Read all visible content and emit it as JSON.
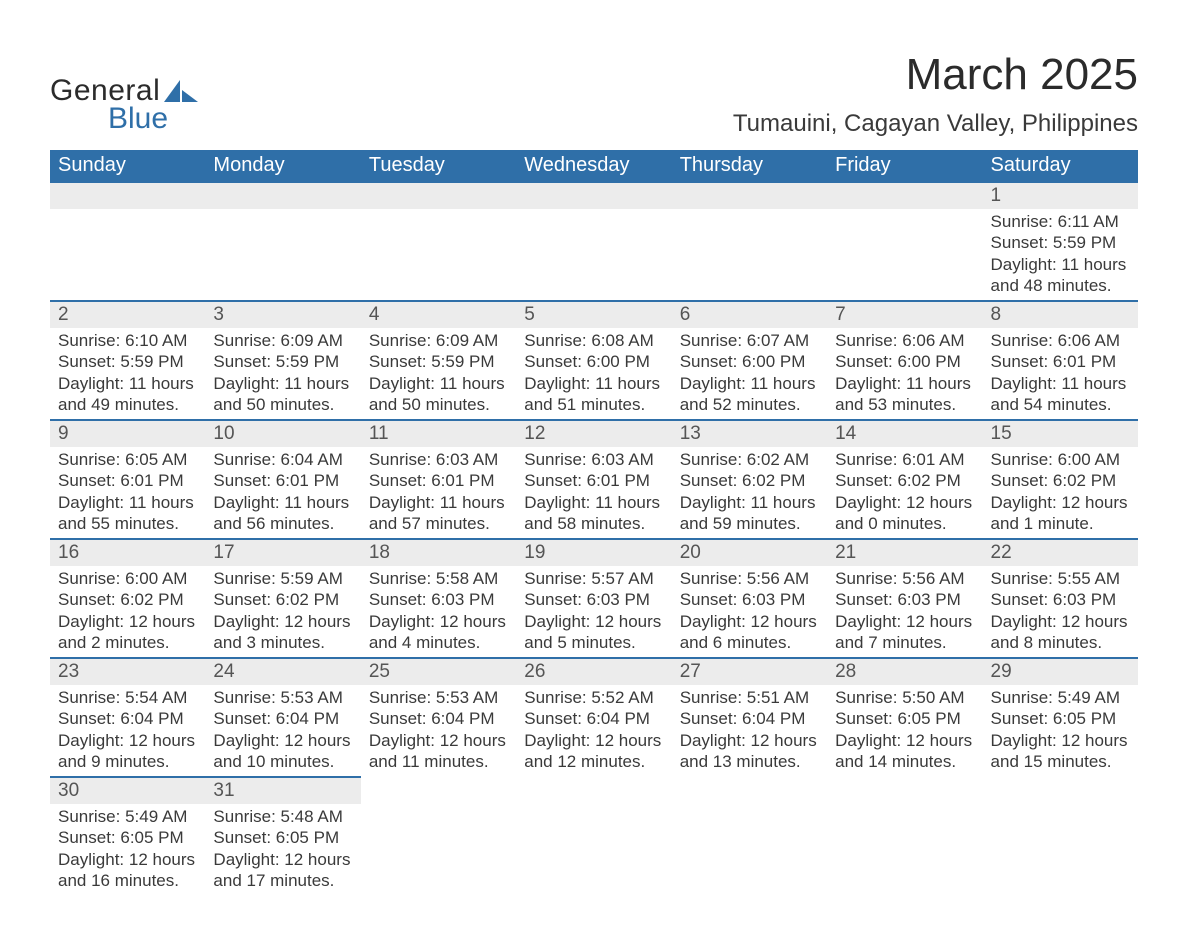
{
  "logo": {
    "word1": "General",
    "word2": "Blue"
  },
  "title": "March 2025",
  "location": "Tumauini, Cagayan Valley, Philippines",
  "columns": [
    "Sunday",
    "Monday",
    "Tuesday",
    "Wednesday",
    "Thursday",
    "Friday",
    "Saturday"
  ],
  "colors": {
    "header_bg": "#2f6fa8",
    "header_text": "#ffffff",
    "daynum_bg": "#ececec",
    "row_border": "#2f6fa8",
    "body_text": "#3a3a3a",
    "logo_accent": "#2f6fa8"
  },
  "typography": {
    "title_fontsize": 44,
    "location_fontsize": 24,
    "header_fontsize": 20,
    "daynum_fontsize": 19,
    "detail_fontsize": 17
  },
  "weeks": [
    [
      null,
      null,
      null,
      null,
      null,
      null,
      {
        "num": "1",
        "sunrise": "Sunrise: 6:11 AM",
        "sunset": "Sunset: 5:59 PM",
        "daylight1": "Daylight: 11 hours",
        "daylight2": "and 48 minutes."
      }
    ],
    [
      {
        "num": "2",
        "sunrise": "Sunrise: 6:10 AM",
        "sunset": "Sunset: 5:59 PM",
        "daylight1": "Daylight: 11 hours",
        "daylight2": "and 49 minutes."
      },
      {
        "num": "3",
        "sunrise": "Sunrise: 6:09 AM",
        "sunset": "Sunset: 5:59 PM",
        "daylight1": "Daylight: 11 hours",
        "daylight2": "and 50 minutes."
      },
      {
        "num": "4",
        "sunrise": "Sunrise: 6:09 AM",
        "sunset": "Sunset: 5:59 PM",
        "daylight1": "Daylight: 11 hours",
        "daylight2": "and 50 minutes."
      },
      {
        "num": "5",
        "sunrise": "Sunrise: 6:08 AM",
        "sunset": "Sunset: 6:00 PM",
        "daylight1": "Daylight: 11 hours",
        "daylight2": "and 51 minutes."
      },
      {
        "num": "6",
        "sunrise": "Sunrise: 6:07 AM",
        "sunset": "Sunset: 6:00 PM",
        "daylight1": "Daylight: 11 hours",
        "daylight2": "and 52 minutes."
      },
      {
        "num": "7",
        "sunrise": "Sunrise: 6:06 AM",
        "sunset": "Sunset: 6:00 PM",
        "daylight1": "Daylight: 11 hours",
        "daylight2": "and 53 minutes."
      },
      {
        "num": "8",
        "sunrise": "Sunrise: 6:06 AM",
        "sunset": "Sunset: 6:01 PM",
        "daylight1": "Daylight: 11 hours",
        "daylight2": "and 54 minutes."
      }
    ],
    [
      {
        "num": "9",
        "sunrise": "Sunrise: 6:05 AM",
        "sunset": "Sunset: 6:01 PM",
        "daylight1": "Daylight: 11 hours",
        "daylight2": "and 55 minutes."
      },
      {
        "num": "10",
        "sunrise": "Sunrise: 6:04 AM",
        "sunset": "Sunset: 6:01 PM",
        "daylight1": "Daylight: 11 hours",
        "daylight2": "and 56 minutes."
      },
      {
        "num": "11",
        "sunrise": "Sunrise: 6:03 AM",
        "sunset": "Sunset: 6:01 PM",
        "daylight1": "Daylight: 11 hours",
        "daylight2": "and 57 minutes."
      },
      {
        "num": "12",
        "sunrise": "Sunrise: 6:03 AM",
        "sunset": "Sunset: 6:01 PM",
        "daylight1": "Daylight: 11 hours",
        "daylight2": "and 58 minutes."
      },
      {
        "num": "13",
        "sunrise": "Sunrise: 6:02 AM",
        "sunset": "Sunset: 6:02 PM",
        "daylight1": "Daylight: 11 hours",
        "daylight2": "and 59 minutes."
      },
      {
        "num": "14",
        "sunrise": "Sunrise: 6:01 AM",
        "sunset": "Sunset: 6:02 PM",
        "daylight1": "Daylight: 12 hours",
        "daylight2": "and 0 minutes."
      },
      {
        "num": "15",
        "sunrise": "Sunrise: 6:00 AM",
        "sunset": "Sunset: 6:02 PM",
        "daylight1": "Daylight: 12 hours",
        "daylight2": "and 1 minute."
      }
    ],
    [
      {
        "num": "16",
        "sunrise": "Sunrise: 6:00 AM",
        "sunset": "Sunset: 6:02 PM",
        "daylight1": "Daylight: 12 hours",
        "daylight2": "and 2 minutes."
      },
      {
        "num": "17",
        "sunrise": "Sunrise: 5:59 AM",
        "sunset": "Sunset: 6:02 PM",
        "daylight1": "Daylight: 12 hours",
        "daylight2": "and 3 minutes."
      },
      {
        "num": "18",
        "sunrise": "Sunrise: 5:58 AM",
        "sunset": "Sunset: 6:03 PM",
        "daylight1": "Daylight: 12 hours",
        "daylight2": "and 4 minutes."
      },
      {
        "num": "19",
        "sunrise": "Sunrise: 5:57 AM",
        "sunset": "Sunset: 6:03 PM",
        "daylight1": "Daylight: 12 hours",
        "daylight2": "and 5 minutes."
      },
      {
        "num": "20",
        "sunrise": "Sunrise: 5:56 AM",
        "sunset": "Sunset: 6:03 PM",
        "daylight1": "Daylight: 12 hours",
        "daylight2": "and 6 minutes."
      },
      {
        "num": "21",
        "sunrise": "Sunrise: 5:56 AM",
        "sunset": "Sunset: 6:03 PM",
        "daylight1": "Daylight: 12 hours",
        "daylight2": "and 7 minutes."
      },
      {
        "num": "22",
        "sunrise": "Sunrise: 5:55 AM",
        "sunset": "Sunset: 6:03 PM",
        "daylight1": "Daylight: 12 hours",
        "daylight2": "and 8 minutes."
      }
    ],
    [
      {
        "num": "23",
        "sunrise": "Sunrise: 5:54 AM",
        "sunset": "Sunset: 6:04 PM",
        "daylight1": "Daylight: 12 hours",
        "daylight2": "and 9 minutes."
      },
      {
        "num": "24",
        "sunrise": "Sunrise: 5:53 AM",
        "sunset": "Sunset: 6:04 PM",
        "daylight1": "Daylight: 12 hours",
        "daylight2": "and 10 minutes."
      },
      {
        "num": "25",
        "sunrise": "Sunrise: 5:53 AM",
        "sunset": "Sunset: 6:04 PM",
        "daylight1": "Daylight: 12 hours",
        "daylight2": "and 11 minutes."
      },
      {
        "num": "26",
        "sunrise": "Sunrise: 5:52 AM",
        "sunset": "Sunset: 6:04 PM",
        "daylight1": "Daylight: 12 hours",
        "daylight2": "and 12 minutes."
      },
      {
        "num": "27",
        "sunrise": "Sunrise: 5:51 AM",
        "sunset": "Sunset: 6:04 PM",
        "daylight1": "Daylight: 12 hours",
        "daylight2": "and 13 minutes."
      },
      {
        "num": "28",
        "sunrise": "Sunrise: 5:50 AM",
        "sunset": "Sunset: 6:05 PM",
        "daylight1": "Daylight: 12 hours",
        "daylight2": "and 14 minutes."
      },
      {
        "num": "29",
        "sunrise": "Sunrise: 5:49 AM",
        "sunset": "Sunset: 6:05 PM",
        "daylight1": "Daylight: 12 hours",
        "daylight2": "and 15 minutes."
      }
    ],
    [
      {
        "num": "30",
        "sunrise": "Sunrise: 5:49 AM",
        "sunset": "Sunset: 6:05 PM",
        "daylight1": "Daylight: 12 hours",
        "daylight2": "and 16 minutes."
      },
      {
        "num": "31",
        "sunrise": "Sunrise: 5:48 AM",
        "sunset": "Sunset: 6:05 PM",
        "daylight1": "Daylight: 12 hours",
        "daylight2": "and 17 minutes."
      },
      null,
      null,
      null,
      null,
      null
    ]
  ]
}
